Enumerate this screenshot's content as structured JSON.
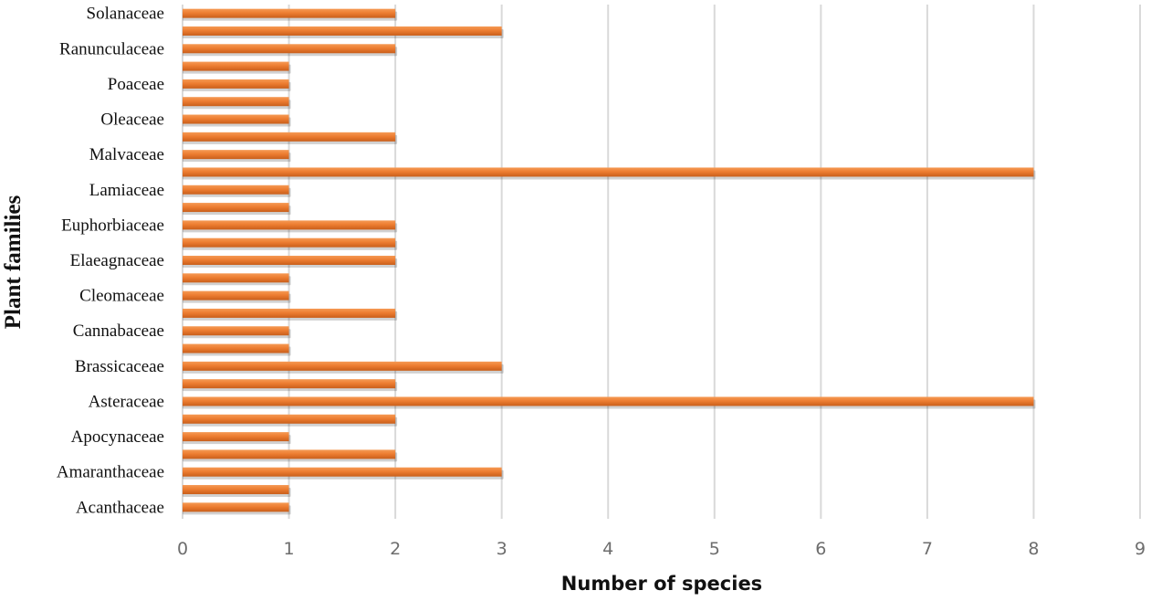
{
  "chart_data": {
    "type": "bar",
    "orientation": "horizontal",
    "categories": [
      "Acanthaceae",
      "",
      "Amaranthaceae",
      "",
      "Apocynaceae",
      "",
      "Asteraceae",
      "",
      "Brassicaceae",
      "",
      "Cannabaceae",
      "",
      "Cleomaceae",
      "",
      "Elaeagnaceae",
      "",
      "Euphorbiaceae",
      "",
      "Lamiaceae",
      "",
      "Malvaceae",
      "",
      "Oleaceae",
      "",
      "Poaceae",
      "",
      "Ranunculaceae",
      "",
      "Solanaceae"
    ],
    "values": [
      1,
      1,
      3,
      2,
      1,
      2,
      8,
      2,
      3,
      1,
      1,
      2,
      1,
      1,
      2,
      2,
      2,
      1,
      1,
      8,
      1,
      2,
      1,
      1,
      1,
      1,
      2,
      3,
      2
    ],
    "xlabel": "Number of species",
    "ylabel": "Plant families",
    "xlim": [
      0,
      9
    ],
    "xticks": [
      "0",
      "1",
      "2",
      "3",
      "4",
      "5",
      "6",
      "7",
      "8",
      "9"
    ],
    "grid": "vertical",
    "bar_color": "#ed7d31"
  }
}
